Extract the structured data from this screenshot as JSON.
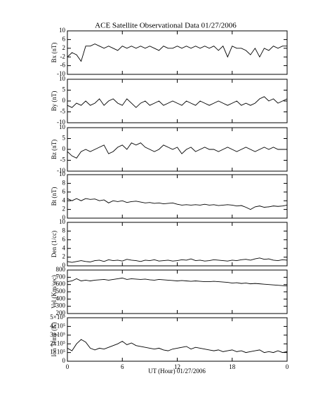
{
  "chart_data": [
    {
      "type": "line",
      "title": "ACE Satellite Observational Data   01/27/2006",
      "y_label": "Bx (nT)",
      "color": "#000000",
      "x": [
        0,
        0.5,
        1,
        1.5,
        2,
        2.5,
        3,
        3.5,
        4,
        4.5,
        5,
        5.5,
        6,
        6.5,
        7,
        7.5,
        8,
        8.5,
        9,
        9.5,
        10,
        10.5,
        11,
        11.5,
        12,
        12.5,
        13,
        13.5,
        14,
        14.5,
        15,
        15.5,
        16,
        16.5,
        17,
        17.5,
        18,
        18.5,
        19,
        19.5,
        20,
        20.5,
        21,
        21.5,
        22,
        22.5,
        23,
        23.5,
        24
      ],
      "values": [
        -2,
        0,
        -1,
        -4,
        3,
        3,
        4,
        3,
        2,
        3,
        2,
        1,
        3,
        2,
        3,
        2,
        3,
        2,
        3,
        2,
        1,
        3,
        2,
        2,
        3,
        2,
        3,
        2,
        3,
        2,
        3,
        2,
        3,
        1,
        3,
        -2,
        3,
        2,
        2,
        1,
        -1,
        2,
        -2,
        2,
        1,
        3,
        2,
        3,
        3
      ],
      "xlim": [
        0,
        24
      ],
      "ylim": [
        -10,
        10
      ],
      "yticks": [
        -10,
        -6,
        -2,
        2,
        6,
        10
      ]
    },
    {
      "type": "line",
      "y_label": "By (nT)",
      "color": "#000000",
      "x": [
        0,
        0.5,
        1,
        1.5,
        2,
        2.5,
        3,
        3.5,
        4,
        4.5,
        5,
        5.5,
        6,
        6.5,
        7,
        7.5,
        8,
        8.5,
        9,
        9.5,
        10,
        10.5,
        11,
        11.5,
        12,
        12.5,
        13,
        13.5,
        14,
        14.5,
        15,
        15.5,
        16,
        16.5,
        17,
        17.5,
        18,
        18.5,
        19,
        19.5,
        20,
        20.5,
        21,
        21.5,
        22,
        22.5,
        23,
        23.5,
        24
      ],
      "values": [
        -2,
        -3,
        -1,
        -2,
        0,
        -2,
        -1,
        1,
        -2,
        0,
        1,
        -1,
        -2,
        1,
        -1,
        -3,
        -1,
        0,
        -2,
        -1,
        0,
        -2,
        -1,
        0,
        -1,
        -2,
        0,
        -1,
        -2,
        0,
        -1,
        -2,
        -1,
        0,
        -1,
        -2,
        -1,
        0,
        -2,
        -1,
        -2,
        -1,
        1,
        2,
        0,
        1,
        -1,
        0,
        1
      ],
      "xlim": [
        0,
        24
      ],
      "ylim": [
        -10,
        10
      ],
      "yticks": [
        -10,
        -5,
        0,
        5,
        10
      ]
    },
    {
      "type": "line",
      "y_label": "Bz (nT)",
      "color": "#000000",
      "x": [
        0,
        0.5,
        1,
        1.5,
        2,
        2.5,
        3,
        3.5,
        4,
        4.5,
        5,
        5.5,
        6,
        6.5,
        7,
        7.5,
        8,
        8.5,
        9,
        9.5,
        10,
        10.5,
        11,
        11.5,
        12,
        12.5,
        13,
        13.5,
        14,
        14.5,
        15,
        15.5,
        16,
        16.5,
        17,
        17.5,
        18,
        18.5,
        19,
        19.5,
        20,
        20.5,
        21,
        21.5,
        22,
        22.5,
        23,
        23.5,
        24
      ],
      "values": [
        -1,
        -3,
        -4,
        -1,
        0,
        -1,
        0,
        1,
        2,
        -2,
        -1,
        1,
        2,
        0,
        3,
        2,
        3,
        1,
        0,
        -1,
        0,
        2,
        1,
        0,
        1,
        -2,
        0,
        1,
        -1,
        0,
        1,
        0,
        0,
        -1,
        0,
        1,
        0,
        -1,
        0,
        1,
        0,
        -1,
        0,
        1,
        0,
        1,
        0,
        0,
        0
      ],
      "xlim": [
        0,
        24
      ],
      "ylim": [
        -10,
        10
      ],
      "yticks": [
        -10,
        -5,
        0,
        5,
        10
      ]
    },
    {
      "type": "line",
      "y_label": "Bt (nT)",
      "color": "#000000",
      "x": [
        0,
        0.5,
        1,
        1.5,
        2,
        2.5,
        3,
        3.5,
        4,
        4.5,
        5,
        5.5,
        6,
        6.5,
        7,
        7.5,
        8,
        8.5,
        9,
        9.5,
        10,
        10.5,
        11,
        11.5,
        12,
        12.5,
        13,
        13.5,
        14,
        14.5,
        15,
        15.5,
        16,
        16.5,
        17,
        17.5,
        18,
        18.5,
        19,
        19.5,
        20,
        20.5,
        21,
        21.5,
        22,
        22.5,
        23,
        23.5,
        24
      ],
      "values": [
        4.5,
        4,
        4.5,
        4,
        4.5,
        4.3,
        4.4,
        4,
        4.2,
        3.5,
        4,
        3.8,
        4,
        3.6,
        3.8,
        3.9,
        3.7,
        3.5,
        3.6,
        3.4,
        3.5,
        3.3,
        3.4,
        3.5,
        3.2,
        3,
        3.1,
        3,
        3.1,
        3,
        3.2,
        3,
        3.1,
        2.9,
        3,
        3.1,
        3,
        2.8,
        2.9,
        2.5,
        2,
        2.6,
        2.8,
        2.5,
        2.6,
        2.8,
        2.7,
        2.8,
        3
      ],
      "xlim": [
        0,
        24
      ],
      "ylim": [
        0,
        10
      ],
      "yticks": [
        0,
        2,
        4,
        6,
        8,
        10
      ]
    },
    {
      "type": "line",
      "y_label": "Den (1/cc)",
      "color": "#000000",
      "x": [
        0,
        0.5,
        1,
        1.5,
        2,
        2.5,
        3,
        3.5,
        4,
        4.5,
        5,
        5.5,
        6,
        6.5,
        7,
        7.5,
        8,
        8.5,
        9,
        9.5,
        10,
        10.5,
        11,
        11.5,
        12,
        12.5,
        13,
        13.5,
        14,
        14.5,
        15,
        15.5,
        16,
        16.5,
        17,
        17.5,
        18,
        18.5,
        19,
        19.5,
        20,
        20.5,
        21,
        21.5,
        22,
        22.5,
        23,
        23.5,
        24
      ],
      "values": [
        1,
        0.8,
        1,
        1.2,
        1,
        0.9,
        1.2,
        1.3,
        1,
        1.4,
        1.2,
        1.3,
        1.1,
        1.5,
        1.3,
        1.2,
        1,
        1.3,
        1.2,
        1.4,
        1.1,
        1.2,
        1.3,
        1.1,
        1.2,
        1.4,
        1.3,
        1.6,
        1.2,
        1.3,
        1.1,
        1.2,
        1.4,
        1.3,
        1.2,
        1.1,
        1.3,
        1.2,
        1.4,
        1.5,
        1.3,
        1.6,
        1.8,
        1.5,
        1.6,
        1.3,
        1.2,
        1.4,
        1.3
      ],
      "xlim": [
        0,
        24
      ],
      "ylim": [
        0,
        10
      ],
      "yticks": [
        0,
        2,
        4,
        6,
        8,
        10
      ]
    },
    {
      "type": "line",
      "y_label": "Vel (Km/sec)",
      "color": "#000000",
      "x": [
        0,
        0.5,
        1,
        1.5,
        2,
        2.5,
        3,
        3.5,
        4,
        4.5,
        5,
        5.5,
        6,
        6.5,
        7,
        7.5,
        8,
        8.5,
        9,
        9.5,
        10,
        10.5,
        11,
        11.5,
        12,
        12.5,
        13,
        13.5,
        14,
        14.5,
        15,
        15.5,
        16,
        16.5,
        17,
        17.5,
        18,
        18.5,
        19,
        19.5,
        20,
        20.5,
        21,
        21.5,
        22,
        22.5,
        23,
        23.5,
        24
      ],
      "values": [
        640,
        650,
        680,
        650,
        660,
        650,
        660,
        665,
        670,
        660,
        670,
        680,
        690,
        670,
        680,
        675,
        670,
        675,
        665,
        660,
        670,
        665,
        660,
        655,
        650,
        655,
        650,
        645,
        650,
        645,
        640,
        640,
        645,
        640,
        635,
        630,
        620,
        625,
        615,
        620,
        610,
        615,
        610,
        605,
        600,
        595,
        590,
        585,
        580
      ],
      "xlim": [
        0,
        24
      ],
      "ylim": [
        200,
        800
      ],
      "yticks": [
        200,
        300,
        400,
        500,
        600,
        700,
        800
      ]
    },
    {
      "type": "line",
      "y_label": "Ion Temp (K)",
      "x_label": "UT (Hour)  01/27/2006",
      "color": "#000000",
      "x": [
        0,
        0.5,
        1,
        1.5,
        2,
        2.5,
        3,
        3.5,
        4,
        4.5,
        5,
        5.5,
        6,
        6.5,
        7,
        7.5,
        8,
        8.5,
        9,
        9.5,
        10,
        10.5,
        11,
        11.5,
        12,
        12.5,
        13,
        13.5,
        14,
        14.5,
        15,
        15.5,
        16,
        16.5,
        17,
        17.5,
        18,
        18.5,
        19,
        19.5,
        20,
        20.5,
        21,
        21.5,
        22,
        22.5,
        23,
        23.5,
        24
      ],
      "values": [
        150000,
        120000,
        200000,
        250000,
        220000,
        150000,
        130000,
        150000,
        140000,
        160000,
        180000,
        200000,
        230000,
        190000,
        210000,
        180000,
        170000,
        160000,
        150000,
        140000,
        150000,
        130000,
        120000,
        140000,
        150000,
        160000,
        170000,
        140000,
        160000,
        150000,
        140000,
        130000,
        120000,
        130000,
        110000,
        120000,
        130000,
        110000,
        120000,
        100000,
        110000,
        120000,
        130000,
        100000,
        110000,
        100000,
        120000,
        100000,
        110000
      ],
      "xlim": [
        0,
        24
      ],
      "ylim": [
        0,
        500000
      ],
      "yticks": [
        0,
        {
          "value": 100000,
          "label": "1×10⁵"
        },
        {
          "value": 200000,
          "label": "2×10⁵"
        },
        {
          "value": 300000,
          "label": "3×10⁵"
        },
        {
          "value": 400000,
          "label": "4×10⁵"
        },
        {
          "value": 500000,
          "label": "5×10⁵"
        }
      ],
      "xticks": [
        0,
        6,
        12,
        18,
        {
          "value": 24,
          "label": "0"
        }
      ]
    }
  ]
}
